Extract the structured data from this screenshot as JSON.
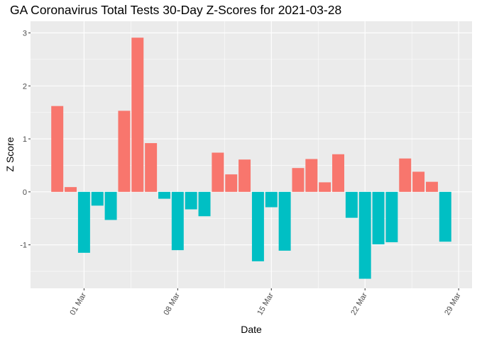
{
  "chart_data": {
    "type": "bar",
    "title": "GA Coronavirus Total Tests 30-Day Z-Scores for 2021-03-28",
    "xlabel": "Date",
    "ylabel": "Z Score",
    "x": [
      "2021-02-27",
      "2021-02-28",
      "2021-03-01",
      "2021-03-02",
      "2021-03-03",
      "2021-03-04",
      "2021-03-05",
      "2021-03-06",
      "2021-03-07",
      "2021-03-08",
      "2021-03-09",
      "2021-03-10",
      "2021-03-11",
      "2021-03-12",
      "2021-03-13",
      "2021-03-14",
      "2021-03-15",
      "2021-03-16",
      "2021-03-17",
      "2021-03-18",
      "2021-03-19",
      "2021-03-20",
      "2021-03-21",
      "2021-03-22",
      "2021-03-23",
      "2021-03-24",
      "2021-03-25",
      "2021-03-26",
      "2021-03-27",
      "2021-03-28"
    ],
    "values": [
      1.62,
      0.09,
      -1.15,
      -0.26,
      -0.53,
      1.53,
      2.91,
      0.92,
      -0.13,
      -1.1,
      -0.33,
      -0.46,
      0.74,
      0.33,
      0.61,
      -1.31,
      -0.29,
      -1.11,
      0.45,
      0.62,
      0.18,
      0.71,
      -0.49,
      -1.64,
      -0.99,
      -0.95,
      0.63,
      0.38,
      0.19,
      -0.94
    ],
    "ylim": [
      -1.82,
      3.22
    ],
    "xlim": [
      "2021-02-25",
      "2021-03-30"
    ],
    "yticks": [
      -1,
      0,
      1,
      2,
      3
    ],
    "xticks": [
      {
        "date": "2021-03-01",
        "label": "01 Mar"
      },
      {
        "date": "2021-03-08",
        "label": "08 Mar"
      },
      {
        "date": "2021-03-15",
        "label": "15 Mar"
      },
      {
        "date": "2021-03-22",
        "label": "22 Mar"
      },
      {
        "date": "2021-03-29",
        "label": "29 Mar"
      }
    ],
    "colors": {
      "positive": "#F8766D",
      "negative": "#00BFC4",
      "panel": "#EBEBEB",
      "grid": "#FFFFFF"
    },
    "grid": true,
    "legend": "none"
  }
}
